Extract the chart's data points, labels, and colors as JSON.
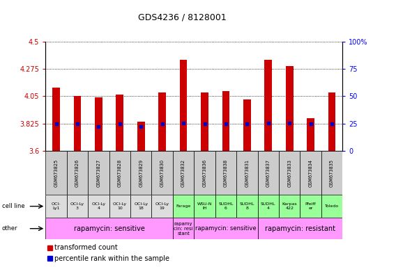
{
  "title": "GDS4236 / 8128001",
  "samples": [
    "GSM673825",
    "GSM673826",
    "GSM673827",
    "GSM673828",
    "GSM673829",
    "GSM673830",
    "GSM673832",
    "GSM673836",
    "GSM673838",
    "GSM673831",
    "GSM673837",
    "GSM673833",
    "GSM673834",
    "GSM673835"
  ],
  "transformed_count": [
    4.12,
    4.05,
    4.04,
    4.06,
    3.84,
    4.08,
    4.35,
    4.08,
    4.09,
    4.02,
    4.35,
    4.3,
    3.87,
    4.08
  ],
  "percentile_rank": [
    3.825,
    3.825,
    3.8,
    3.825,
    3.8,
    3.825,
    3.83,
    3.825,
    3.825,
    3.82,
    3.83,
    3.83,
    3.82,
    3.825
  ],
  "ylim": [
    3.6,
    4.5
  ],
  "yticks": [
    3.6,
    3.825,
    4.05,
    4.275,
    4.5
  ],
  "ytick_labels": [
    "3.6",
    "3.825",
    "4.05",
    "4.275",
    "4.5"
  ],
  "right_yticks_pct": [
    0,
    25,
    50,
    75,
    100
  ],
  "right_ytick_labels": [
    "0",
    "25",
    "50",
    "75",
    "100%"
  ],
  "bar_color": "#cc0000",
  "dot_color": "#0000cc",
  "cell_line_labels": [
    "OCI-\nLy1",
    "OCI-Ly\n3",
    "OCI-Ly\n4",
    "OCI-Ly\n10",
    "OCI-Ly\n18",
    "OCI-Ly\n19",
    "Farage",
    "WSU-N\nIH",
    "SUDHL\n6",
    "SUDHL\n8",
    "SUDHL\n4",
    "Karpas\n422",
    "Pfeiff\ner",
    "Toledo"
  ],
  "cell_line_colors": [
    "#dddddd",
    "#dddddd",
    "#dddddd",
    "#dddddd",
    "#dddddd",
    "#dddddd",
    "#99ff99",
    "#99ff99",
    "#99ff99",
    "#99ff99",
    "#99ff99",
    "#99ff99",
    "#99ff99",
    "#99ff99"
  ],
  "other_spans": [
    {
      "label": "rapamycin: sensitive",
      "start": 0,
      "end": 5,
      "color": "#ff99ff",
      "fontsize": 7
    },
    {
      "label": "rapamy\ncin: resi\nstant",
      "start": 6,
      "end": 6,
      "color": "#ff99ff",
      "fontsize": 5
    },
    {
      "label": "rapamycin: sensitive",
      "start": 7,
      "end": 9,
      "color": "#ff99ff",
      "fontsize": 6
    },
    {
      "label": "rapamycin: resistant",
      "start": 10,
      "end": 13,
      "color": "#ff99ff",
      "fontsize": 7
    }
  ],
  "legend_bar_label": "transformed count",
  "legend_dot_label": "percentile rank within the sample"
}
